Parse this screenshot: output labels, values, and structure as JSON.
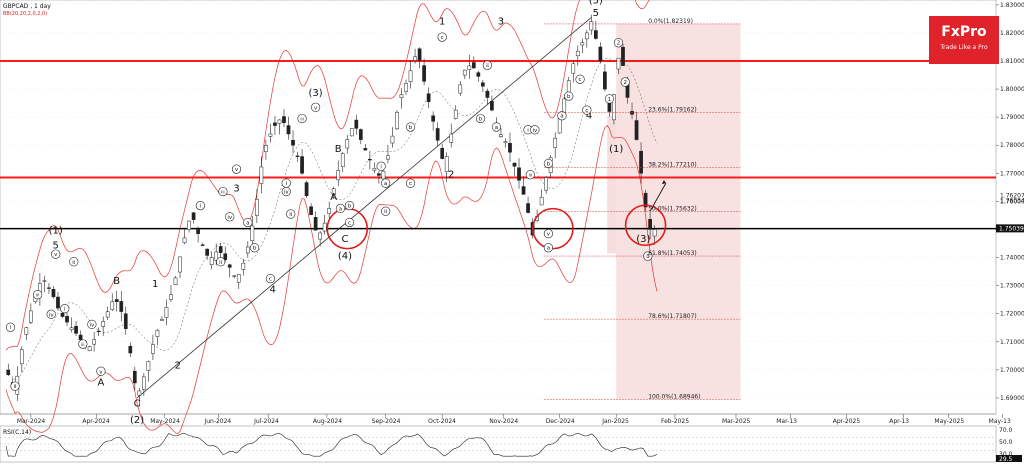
{
  "header": {
    "symbol_label": "GBPCAD , 1 day",
    "indicator_label": "BB(20,20,2,0,2,0)"
  },
  "logo": {
    "brand": "FxPro",
    "tagline": "Trade Like a Pro",
    "color": "#e0222a"
  },
  "rsi_panel": {
    "label": "RSI(C,14)",
    "ticks": [
      "70.0",
      "50.0",
      "30.0"
    ],
    "current": "29.5"
  },
  "chart_data": {
    "type": "candlestick",
    "symbol": "GBPCAD",
    "timeframe": "1 day",
    "ylim": [
      1.685,
      1.831
    ],
    "y_ticks": [
      "1.83000",
      "1.82000",
      "1.81000",
      "1.80000",
      "1.79000",
      "1.78000",
      "1.77000",
      "1.76000",
      "1.75000",
      "1.74000",
      "1.73000",
      "1.72000",
      "1.71000",
      "1.70000",
      "1.69000"
    ],
    "x_ticks": [
      "Mar-2024",
      "Apr-2024",
      "May-2024",
      "Jun-2024",
      "Jul-2024",
      "Aug-2024",
      "Sep-2024",
      "Oct-2024",
      "Nov-2024",
      "Dec-2024",
      "Jan-2025",
      "Feb-2025",
      "Mar-2025",
      "Mar-13",
      "Apr-2025",
      "Apr-13",
      "May-2025",
      "May-13"
    ],
    "price_path": [
      [
        0,
        1.7
      ],
      [
        4,
        1.693
      ],
      [
        8,
        1.712
      ],
      [
        12,
        1.724
      ],
      [
        16,
        1.733
      ],
      [
        20,
        1.728
      ],
      [
        24,
        1.72
      ],
      [
        28,
        1.716
      ],
      [
        32,
        1.712
      ],
      [
        36,
        1.707
      ],
      [
        40,
        1.712
      ],
      [
        44,
        1.719
      ],
      [
        48,
        1.726
      ],
      [
        52,
        1.719
      ],
      [
        55,
        1.706
      ],
      [
        58,
        1.69
      ],
      [
        62,
        1.7
      ],
      [
        66,
        1.712
      ],
      [
        70,
        1.72
      ],
      [
        74,
        1.729
      ],
      [
        78,
        1.744
      ],
      [
        82,
        1.756
      ],
      [
        86,
        1.746
      ],
      [
        90,
        1.739
      ],
      [
        94,
        1.743
      ],
      [
        98,
        1.738
      ],
      [
        102,
        1.732
      ],
      [
        106,
        1.74
      ],
      [
        110,
        1.755
      ],
      [
        114,
        1.778
      ],
      [
        118,
        1.786
      ],
      [
        122,
        1.79
      ],
      [
        126,
        1.782
      ],
      [
        130,
        1.774
      ],
      [
        134,
        1.758
      ],
      [
        138,
        1.747
      ],
      [
        142,
        1.754
      ],
      [
        146,
        1.768
      ],
      [
        150,
        1.78
      ],
      [
        154,
        1.788
      ],
      [
        158,
        1.78
      ],
      [
        162,
        1.773
      ],
      [
        166,
        1.768
      ],
      [
        170,
        1.779
      ],
      [
        174,
        1.796
      ],
      [
        178,
        1.804
      ],
      [
        182,
        1.814
      ],
      [
        186,
        1.799
      ],
      [
        190,
        1.785
      ],
      [
        194,
        1.772
      ],
      [
        198,
        1.788
      ],
      [
        202,
        1.806
      ],
      [
        206,
        1.809
      ],
      [
        210,
        1.803
      ],
      [
        214,
        1.795
      ],
      [
        218,
        1.785
      ],
      [
        222,
        1.78
      ],
      [
        226,
        1.77
      ],
      [
        230,
        1.76
      ],
      [
        233,
        1.748
      ],
      [
        236,
        1.758
      ],
      [
        240,
        1.772
      ],
      [
        244,
        1.786
      ],
      [
        248,
        1.8
      ],
      [
        252,
        1.812
      ],
      [
        256,
        1.818
      ],
      [
        259,
        1.824
      ],
      [
        262,
        1.815
      ],
      [
        265,
        1.8
      ],
      [
        268,
        1.788
      ],
      [
        270,
        1.808
      ],
      [
        272,
        1.814
      ],
      [
        275,
        1.797
      ],
      [
        278,
        1.788
      ],
      [
        280,
        1.776
      ],
      [
        282,
        1.764
      ],
      [
        284,
        1.752
      ],
      [
        286,
        1.748
      ],
      [
        288,
        1.752
      ]
    ],
    "horizontal_lines": [
      {
        "price": 1.81,
        "color": "#ff1a1a",
        "role": "resistance"
      },
      {
        "price": 1.7685,
        "color": "#ff1a1a",
        "role": "resistance"
      },
      {
        "price": 1.7503,
        "color": "#000000",
        "role": "support"
      }
    ],
    "fibonacci": {
      "range_start_day": 270,
      "range_end_day": 325,
      "levels": [
        {
          "label": "0.0%(1.82319)",
          "price": 1.82319
        },
        {
          "label": "23.6%(1.79162)",
          "price": 1.79162
        },
        {
          "label": "38.2%(1.77210)",
          "price": 1.7721
        },
        {
          "label": "50.0%(1.75632)",
          "price": 1.75632
        },
        {
          "label": "61.8%(1.74053)",
          "price": 1.74053
        },
        {
          "label": "78.6%(1.71807)",
          "price": 1.71807
        },
        {
          "label": "100.0%(1.68946)",
          "price": 1.68946
        }
      ]
    },
    "price_labels": [
      {
        "label": "1.76207",
        "price": 1.76207,
        "style": "plain"
      },
      {
        "label": "1.76034",
        "price": 1.76034,
        "style": "plain"
      },
      {
        "label": "1.75039",
        "price": 1.75039,
        "style": "black"
      }
    ],
    "wave_labels": [
      {
        "text": "(1)",
        "day": 22,
        "price": 1.7485,
        "size": "l"
      },
      {
        "text": "5",
        "day": 22,
        "price": 1.7432,
        "size": "l"
      },
      {
        "text": "B",
        "day": 49,
        "price": 1.7305,
        "size": "l"
      },
      {
        "text": "A",
        "day": 42,
        "price": 1.6945,
        "size": "l"
      },
      {
        "text": "C",
        "day": 58,
        "price": 1.687,
        "size": "l"
      },
      {
        "text": "(2)",
        "day": 58,
        "price": 1.681,
        "size": "l"
      },
      {
        "text": "1",
        "day": 66,
        "price": 1.7295,
        "size": "l"
      },
      {
        "text": "2",
        "day": 76,
        "price": 1.7005,
        "size": "l"
      },
      {
        "text": "3",
        "day": 102,
        "price": 1.7635,
        "size": "l"
      },
      {
        "text": "4",
        "day": 118,
        "price": 1.7275,
        "size": "l"
      },
      {
        "text": "(3)",
        "day": 137,
        "price": 1.7975,
        "size": "l"
      },
      {
        "text": "5",
        "day": 137,
        "price": 1.7925,
        "size": "l"
      },
      {
        "text": "B",
        "day": 147,
        "price": 1.7775,
        "size": "l"
      },
      {
        "text": "A",
        "day": 145,
        "price": 1.7605,
        "size": "l"
      },
      {
        "text": "C",
        "day": 150,
        "price": 1.7455,
        "size": "l"
      },
      {
        "text": "(4)",
        "day": 150,
        "price": 1.7395,
        "size": "l"
      },
      {
        "text": "1",
        "day": 193,
        "price": 1.823,
        "size": "l"
      },
      {
        "text": "2",
        "day": 197,
        "price": 1.7685,
        "size": "l"
      },
      {
        "text": "3",
        "day": 219,
        "price": 1.823,
        "size": "l"
      },
      {
        "text": "(5)",
        "day": 261,
        "price": 1.8305,
        "size": "l"
      },
      {
        "text": "5",
        "day": 261,
        "price": 1.826,
        "size": "l"
      },
      {
        "text": "4",
        "day": 258,
        "price": 1.7895,
        "size": "l"
      },
      {
        "text": "(1)",
        "day": 270,
        "price": 1.7775,
        "size": "l"
      },
      {
        "text": "(3)",
        "day": 282,
        "price": 1.7455,
        "size": "l"
      }
    ],
    "circled_labels": [
      {
        "text": "i",
        "day": 2,
        "price": 1.7152
      },
      {
        "text": "ii",
        "day": 4,
        "price": 1.6942
      },
      {
        "text": "iii",
        "day": 14,
        "price": 1.7268
      },
      {
        "text": "iv",
        "day": 20,
        "price": 1.7198
      },
      {
        "text": "v",
        "day": 22,
        "price": 1.7412
      },
      {
        "text": "i",
        "day": 26,
        "price": 1.7218
      },
      {
        "text": "ii",
        "day": 30,
        "price": 1.7385
      },
      {
        "text": "iii",
        "day": 34,
        "price": 1.7092
      },
      {
        "text": "iv",
        "day": 38,
        "price": 1.7162
      },
      {
        "text": "v",
        "day": 42,
        "price": 1.6995
      },
      {
        "text": "i",
        "day": 86,
        "price": 1.7585
      },
      {
        "text": "ii",
        "day": 95,
        "price": 1.7385
      },
      {
        "text": "iii",
        "day": 96,
        "price": 1.7635
      },
      {
        "text": "iv",
        "day": 99,
        "price": 1.7545
      },
      {
        "text": "v",
        "day": 102,
        "price": 1.7715
      },
      {
        "text": "a",
        "day": 107,
        "price": 1.7525
      },
      {
        "text": "b",
        "day": 110,
        "price": 1.7435
      },
      {
        "text": "c",
        "day": 117,
        "price": 1.7325
      },
      {
        "text": "iii",
        "day": 131,
        "price": 1.7895
      },
      {
        "text": "iv",
        "day": 124,
        "price": 1.7635
      },
      {
        "text": "v",
        "day": 137,
        "price": 1.7935
      },
      {
        "text": "i",
        "day": 124,
        "price": 1.7665
      },
      {
        "text": "ii",
        "day": 126,
        "price": 1.7555
      },
      {
        "text": "a",
        "day": 148,
        "price": 1.7575
      },
      {
        "text": "b",
        "day": 152,
        "price": 1.7585
      },
      {
        "text": "c",
        "day": 152,
        "price": 1.7525
      },
      {
        "text": "i",
        "day": 166,
        "price": 1.7725
      },
      {
        "text": "ii",
        "day": 168,
        "price": 1.7565
      },
      {
        "text": "a",
        "day": 168,
        "price": 1.7665
      },
      {
        "text": "b",
        "day": 179,
        "price": 1.7865
      },
      {
        "text": "c",
        "day": 179,
        "price": 1.7665
      },
      {
        "text": "c",
        "day": 193,
        "price": 1.8185
      },
      {
        "text": "b",
        "day": 210,
        "price": 1.7895
      },
      {
        "text": "iii",
        "day": 213,
        "price": 1.8085
      },
      {
        "text": "a",
        "day": 217,
        "price": 1.7865
      },
      {
        "text": "i",
        "day": 231,
        "price": 1.7855
      },
      {
        "text": "iv",
        "day": 234,
        "price": 1.7855
      },
      {
        "text": "iii",
        "day": 232,
        "price": 1.7695
      },
      {
        "text": "b",
        "day": 240,
        "price": 1.7735
      },
      {
        "text": "v",
        "day": 240,
        "price": 1.7485
      },
      {
        "text": "a",
        "day": 240,
        "price": 1.7435
      },
      {
        "text": "a",
        "day": 246,
        "price": 1.7905
      },
      {
        "text": "b",
        "day": 249,
        "price": 1.7975
      },
      {
        "text": "c",
        "day": 254,
        "price": 1.8035
      },
      {
        "text": "c",
        "day": 257,
        "price": 1.7925
      },
      {
        "text": "1",
        "day": 267,
        "price": 1.7965
      },
      {
        "text": "2",
        "day": 271,
        "price": 1.8165
      },
      {
        "text": "2",
        "day": 274,
        "price": 1.8025
      },
      {
        "text": "3",
        "day": 284,
        "price": 1.7405
      }
    ],
    "circles": [
      {
        "day": 151,
        "price": 1.7503
      },
      {
        "day": 242,
        "price": 1.7503
      },
      {
        "day": 283,
        "price": 1.7515
      }
    ],
    "trendline": [
      [
        58,
        1.69
      ],
      [
        259,
        1.8255
      ]
    ],
    "x_tick_days": [
      11,
      40,
      70,
      94,
      116,
      142,
      168,
      193,
      220,
      245,
      270,
      296,
      323,
      347,
      372,
      397,
      417,
      441
    ]
  }
}
